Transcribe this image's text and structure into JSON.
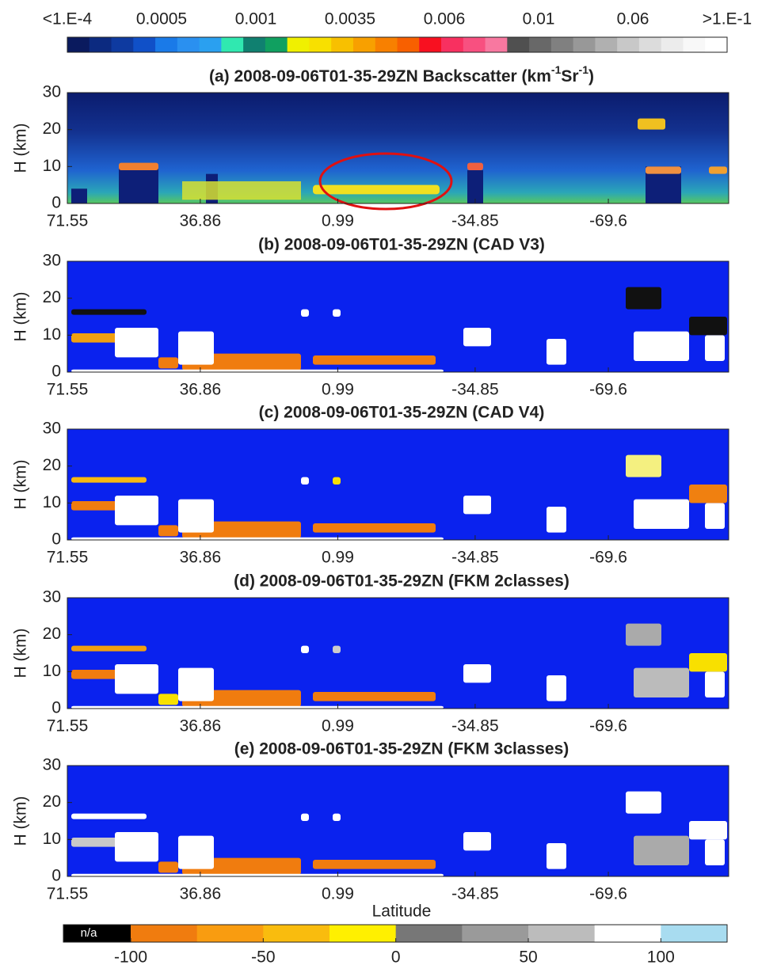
{
  "top_colorbar": {
    "labels": [
      "<1.E-4",
      "0.0005",
      "0.001",
      "0.0035",
      "0.006",
      "0.01",
      "0.06",
      ">1.E-1"
    ],
    "colors": [
      "#0a1a5e",
      "#0c2a80",
      "#0e3aa0",
      "#1050c8",
      "#1a7ae8",
      "#2a90f0",
      "#2aa0f0",
      "#30e8b0",
      "#108070",
      "#10a060",
      "#f0f000",
      "#f8e000",
      "#f8c000",
      "#f8a000",
      "#f88000",
      "#f86000",
      "#f81020",
      "#f83060",
      "#f85080",
      "#f878a0",
      "#505050",
      "#686868",
      "#808080",
      "#989898",
      "#b0b0b0",
      "#c8c8c8",
      "#dcdcdc",
      "#ececec",
      "#f8f8f8",
      "#ffffff"
    ]
  },
  "panels": [
    {
      "title_parts": [
        "(a) 2008-09-06T01-35-29ZN Backscatter (km",
        "-1",
        "Sr",
        "-1",
        ")"
      ],
      "ylabel": "H (km)",
      "ylim": [
        0,
        30
      ],
      "yticks": [
        0,
        10,
        20,
        30
      ],
      "xlim": [
        71.55,
        -101
      ],
      "xticks": [
        71.55,
        36.86,
        0.99,
        -34.85,
        -69.6
      ]
    },
    {
      "title": "(b) 2008-09-06T01-35-29ZN (CAD V3)",
      "ylabel": "H (km)",
      "ylim": [
        0,
        30
      ],
      "yticks": [
        0,
        10,
        20,
        30
      ],
      "xlim": [
        71.55,
        -101
      ],
      "xticks": [
        71.55,
        36.86,
        0.99,
        -34.85,
        -69.6
      ]
    },
    {
      "title": "(c) 2008-09-06T01-35-29ZN (CAD V4)",
      "ylabel": "H (km)",
      "ylim": [
        0,
        30
      ],
      "yticks": [
        0,
        10,
        20,
        30
      ],
      "xlim": [
        71.55,
        -101
      ],
      "xticks": [
        71.55,
        36.86,
        0.99,
        -34.85,
        -69.6
      ]
    },
    {
      "title": "(d) 2008-09-06T01-35-29ZN (FKM 2classes)",
      "ylabel": "H (km)",
      "ylim": [
        0,
        30
      ],
      "yticks": [
        0,
        10,
        20,
        30
      ],
      "xlim": [
        71.55,
        -101
      ],
      "xticks": [
        71.55,
        36.86,
        0.99,
        -34.85,
        -69.6
      ]
    },
    {
      "title": "(e) 2008-09-06T01-35-29ZN (FKM 3classes)",
      "ylabel": "H (km)",
      "ylim": [
        0,
        30
      ],
      "yticks": [
        0,
        10,
        20,
        30
      ],
      "xlim": [
        71.55,
        -101
      ],
      "xticks": [
        71.55,
        36.86,
        0.99,
        -34.85,
        -69.6
      ]
    }
  ],
  "xlabel": "Latitude",
  "bottom_colorbar": {
    "na_label": "n/a",
    "lim": [
      -100,
      125
    ],
    "ticks": [
      -100,
      -50,
      0,
      50,
      100
    ],
    "colors": [
      "#f07c0f",
      "#f99c10",
      "#f9bc0e",
      "#fff000",
      "#777777",
      "#9a9a9a",
      "#bcbcbc",
      "#ffffff",
      "#a8dcf0"
    ]
  }
}
